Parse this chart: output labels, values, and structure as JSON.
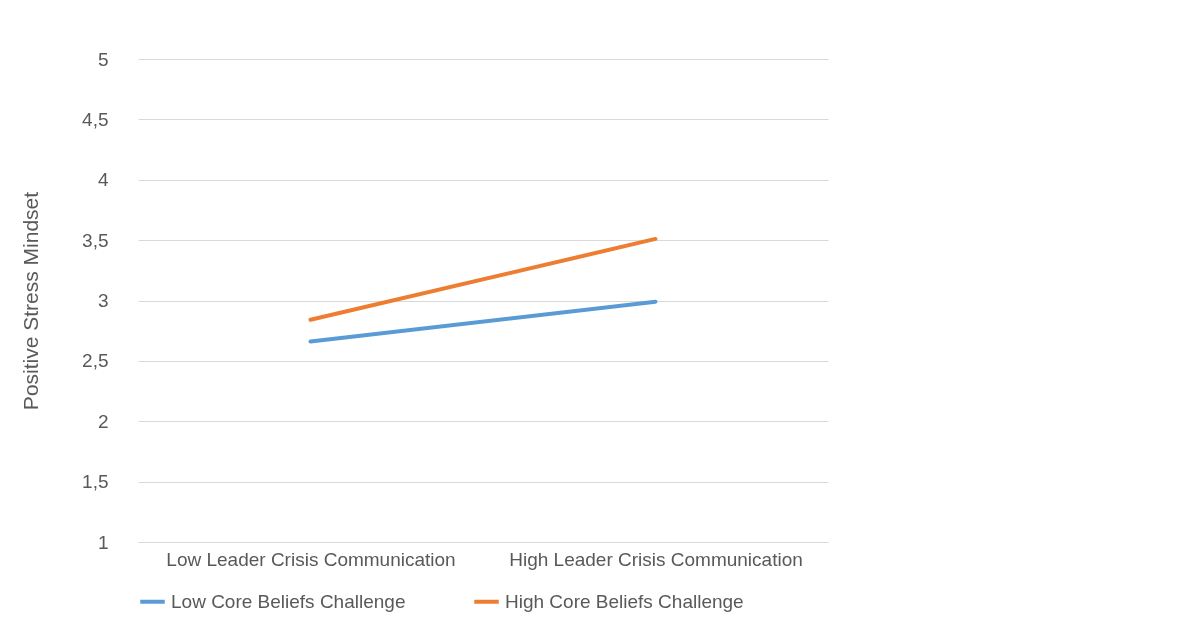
{
  "chart_data": {
    "type": "line",
    "ylabel": "Positive Stress Mindset",
    "categories": [
      "Low Leader Crisis Communication",
      "High Leader Crisis Communication"
    ],
    "series": [
      {
        "name": "Low Core Beliefs Challenge",
        "color": "#5b9bd5",
        "values": [
          2.66,
          2.99
        ]
      },
      {
        "name": "High Core Beliefs Challenge",
        "color": "#ed7d31",
        "values": [
          2.84,
          3.51
        ]
      }
    ],
    "ylim": [
      1,
      5
    ],
    "yticks": [
      1,
      {
        "value": 1.5,
        "label": "1,5"
      },
      2,
      {
        "value": 2.5,
        "label": "2,5"
      },
      3,
      {
        "value": 3.5,
        "label": "3,5"
      },
      4,
      {
        "value": 4.5,
        "label": "4,5"
      },
      5
    ],
    "grid": "y",
    "legend": "bottom",
    "marker": "none",
    "line_style": "solid"
  }
}
